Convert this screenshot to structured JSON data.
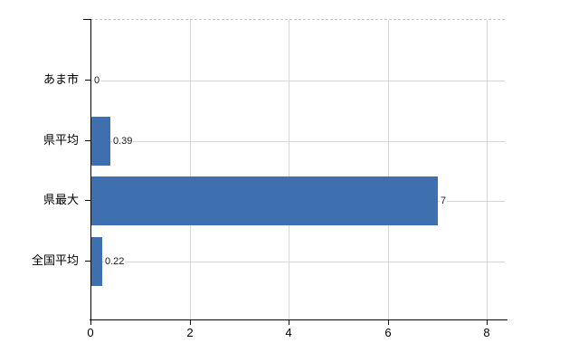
{
  "chart_data": {
    "type": "bar",
    "orientation": "horizontal",
    "title": "",
    "xlabel": "",
    "ylabel": "",
    "categories": [
      "あま市",
      "県平均",
      "県最大",
      "全国平均"
    ],
    "values": [
      0,
      0.39,
      7,
      0.22
    ],
    "value_labels": [
      "0",
      "0.39",
      "7",
      "0.22"
    ],
    "x_ticks": [
      0,
      2,
      4,
      6,
      8
    ],
    "x_tick_labels": [
      "0",
      "2",
      "4",
      "6",
      "8"
    ],
    "xlim": [
      0,
      8.37
    ],
    "grid": true,
    "legend": "none",
    "bar_color": "#3e6fae",
    "grid_color": "#d8d8d8",
    "axis_color": "#000000",
    "text_color": "#000000"
  }
}
